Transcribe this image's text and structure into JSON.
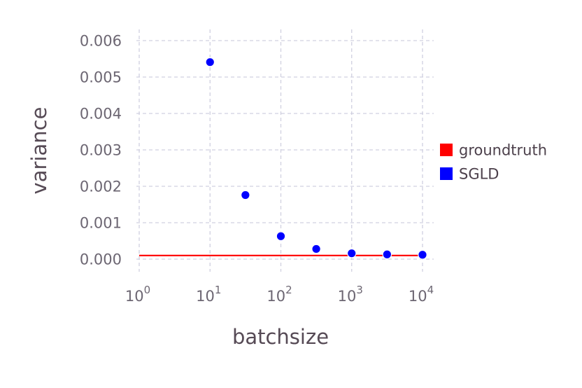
{
  "chart_data": {
    "type": "scatter",
    "xlabel": "batchsize",
    "ylabel": "variance",
    "x_scale": "log10",
    "xlim": [
      1,
      10000
    ],
    "ylim": [
      0.0,
      0.006
    ],
    "x_tick_base": "10",
    "x_tick_exponents": [
      "0",
      "1",
      "2",
      "3",
      "4"
    ],
    "y_ticks": [
      "0.000",
      "0.001",
      "0.002",
      "0.003",
      "0.004",
      "0.005",
      "0.006"
    ],
    "grid": true,
    "legend_position": "right",
    "series": [
      {
        "name": "groundtruth",
        "kind": "line",
        "color": "#ff0000",
        "x": [
          1,
          10000
        ],
        "y": [
          0.0001,
          0.0001
        ]
      },
      {
        "name": "SGLD",
        "kind": "points",
        "color": "#0000ff",
        "x": [
          10,
          31.6,
          100,
          316,
          1000,
          3160,
          10000
        ],
        "y": [
          0.00541,
          0.00176,
          0.00063,
          0.00028,
          0.00016,
          0.00013,
          0.00012
        ]
      }
    ]
  }
}
